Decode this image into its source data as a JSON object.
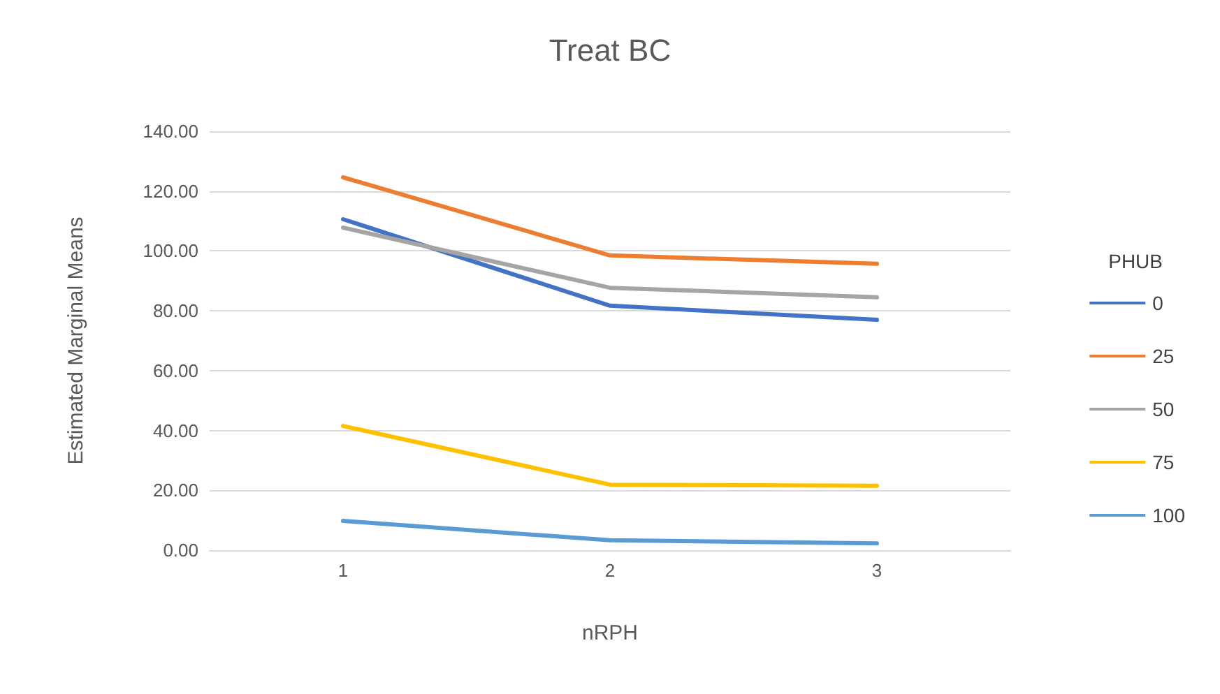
{
  "chart_data": {
    "type": "line",
    "title": "Treat BC",
    "xlabel": "nRPH",
    "ylabel": "Estimated Marginal Means",
    "legend_title": "PHUB",
    "categories": [
      "1",
      "2",
      "3"
    ],
    "series": [
      {
        "name": "0",
        "color": "#4472c4",
        "values": [
          110.6,
          81.7,
          77.0
        ]
      },
      {
        "name": "25",
        "color": "#ed7d31",
        "values": [
          124.6,
          98.5,
          95.7
        ]
      },
      {
        "name": "50",
        "color": "#a5a5a5",
        "values": [
          107.8,
          87.7,
          84.5
        ]
      },
      {
        "name": "75",
        "color": "#ffc000",
        "values": [
          41.5,
          21.9,
          21.5
        ]
      },
      {
        "name": "100",
        "color": "#5b9bd5",
        "values": [
          9.8,
          3.3,
          2.3
        ]
      }
    ],
    "ylim": [
      0,
      140
    ],
    "yticks": [
      {
        "value": 0,
        "label": "0.00"
      },
      {
        "value": 20,
        "label": "20.00"
      },
      {
        "value": 40,
        "label": "40.00"
      },
      {
        "value": 60,
        "label": "60.00"
      },
      {
        "value": 80,
        "label": "80.00"
      },
      {
        "value": 100,
        "label": "100.00"
      },
      {
        "value": 120,
        "label": "120.00"
      },
      {
        "value": 140,
        "label": "140.00"
      }
    ],
    "grid": "y",
    "legend": "right",
    "marker": "none",
    "line_style": "solid"
  }
}
